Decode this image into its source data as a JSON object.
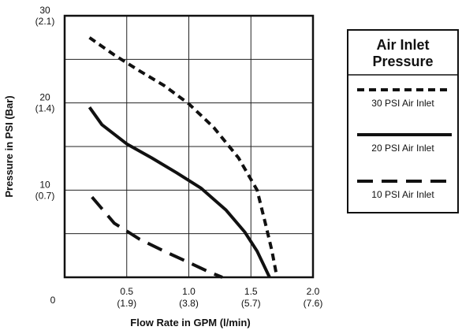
{
  "chart_data": {
    "type": "line",
    "xlabel": "Flow Rate in GPM (l/min)",
    "ylabel": "Pressure in PSI (Bar)",
    "xlim": [
      0,
      2.0
    ],
    "ylim": [
      0,
      30
    ],
    "grid": true,
    "x_origin_label": "0",
    "x_ticks": [
      {
        "value": 0.5,
        "label": "0.5",
        "sub": "(1.9)"
      },
      {
        "value": 1.0,
        "label": "1.0",
        "sub": "(3.8)"
      },
      {
        "value": 1.5,
        "label": "1.5",
        "sub": "(5.7)"
      },
      {
        "value": 2.0,
        "label": "2.0",
        "sub": "(7.6)"
      }
    ],
    "y_ticks": [
      {
        "value": 10,
        "label": "10",
        "sub": "(0.7)"
      },
      {
        "value": 20,
        "label": "20",
        "sub": "(1.4)"
      },
      {
        "value": 30,
        "label": "30",
        "sub": "(2.1)"
      }
    ],
    "legend": {
      "title_line1": "Air Inlet",
      "title_line2": "Pressure",
      "placement": "right"
    },
    "series": [
      {
        "name": "30 PSI Air Inlet",
        "style": "short-dash",
        "x": [
          0.2,
          0.4,
          0.6,
          0.8,
          1.0,
          1.2,
          1.4,
          1.55,
          1.62,
          1.67,
          1.71
        ],
        "y": [
          27.5,
          25.5,
          23.7,
          22.0,
          19.9,
          17.2,
          13.7,
          10.0,
          6.0,
          3.0,
          0.0
        ]
      },
      {
        "name": "20 PSI Air Inlet",
        "style": "solid",
        "x": [
          0.2,
          0.3,
          0.5,
          0.7,
          0.9,
          1.1,
          1.3,
          1.45,
          1.55,
          1.6,
          1.65
        ],
        "y": [
          19.5,
          17.5,
          15.3,
          13.7,
          12.0,
          10.2,
          7.7,
          5.2,
          3.0,
          1.5,
          0.0
        ]
      },
      {
        "name": "10 PSI Air Inlet",
        "style": "long-dash",
        "x": [
          0.22,
          0.4,
          0.6,
          0.8,
          1.0,
          1.15,
          1.27
        ],
        "y": [
          9.2,
          6.2,
          4.4,
          3.0,
          1.7,
          0.7,
          0.0
        ]
      }
    ]
  }
}
